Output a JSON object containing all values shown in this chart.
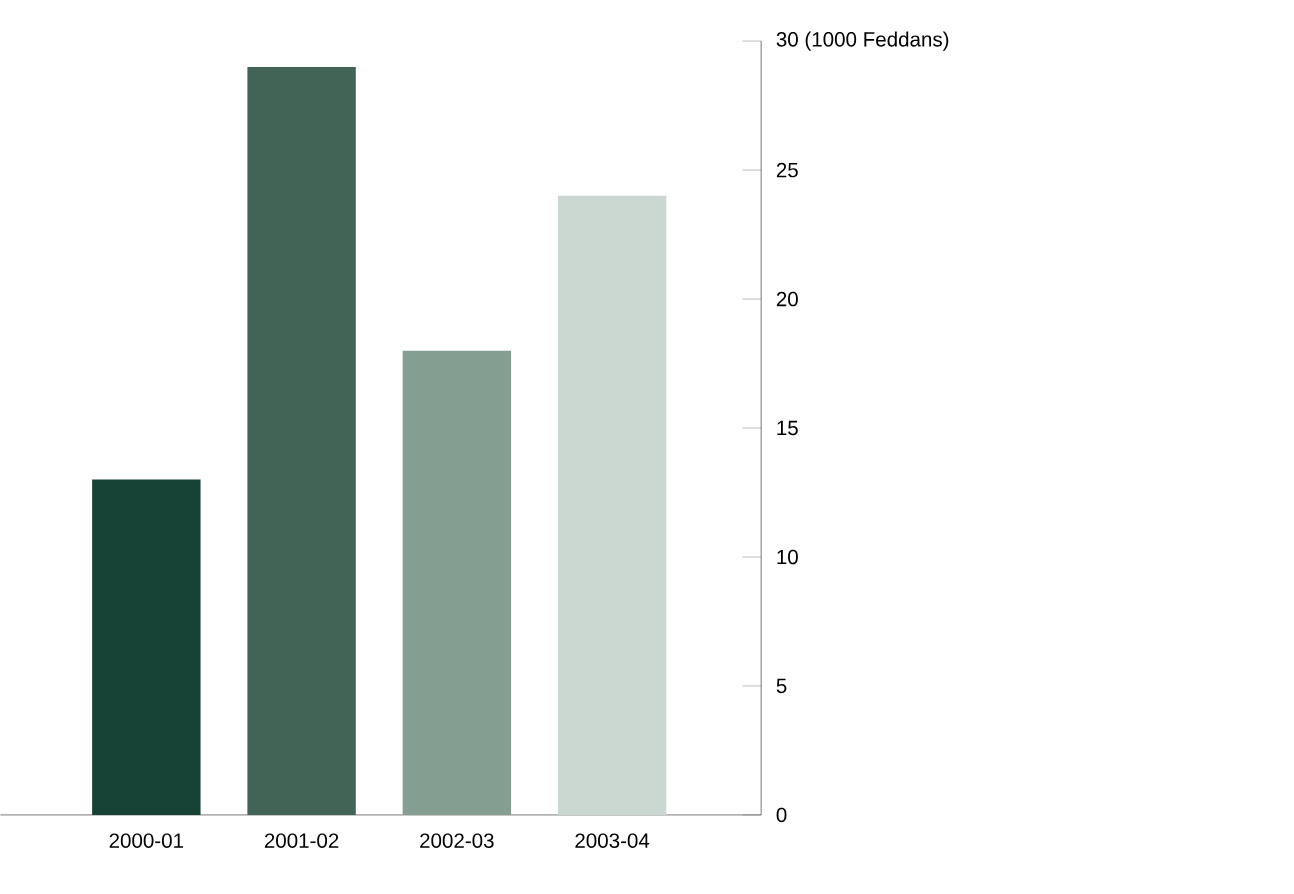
{
  "chart_data": {
    "type": "bar",
    "categories": [
      "2000-01",
      "2001-02",
      "2002-03",
      "2003-04"
    ],
    "values": [
      13,
      29,
      18,
      24
    ],
    "colors": [
      "#154234",
      "#426456",
      "#849e92",
      "#cbd7d1"
    ],
    "ylim": [
      0,
      30
    ],
    "yticks": [
      0,
      5,
      10,
      15,
      20,
      25,
      {
        "value": 30,
        "label": "30 (1000 Feddans)"
      }
    ],
    "grid": false
  }
}
